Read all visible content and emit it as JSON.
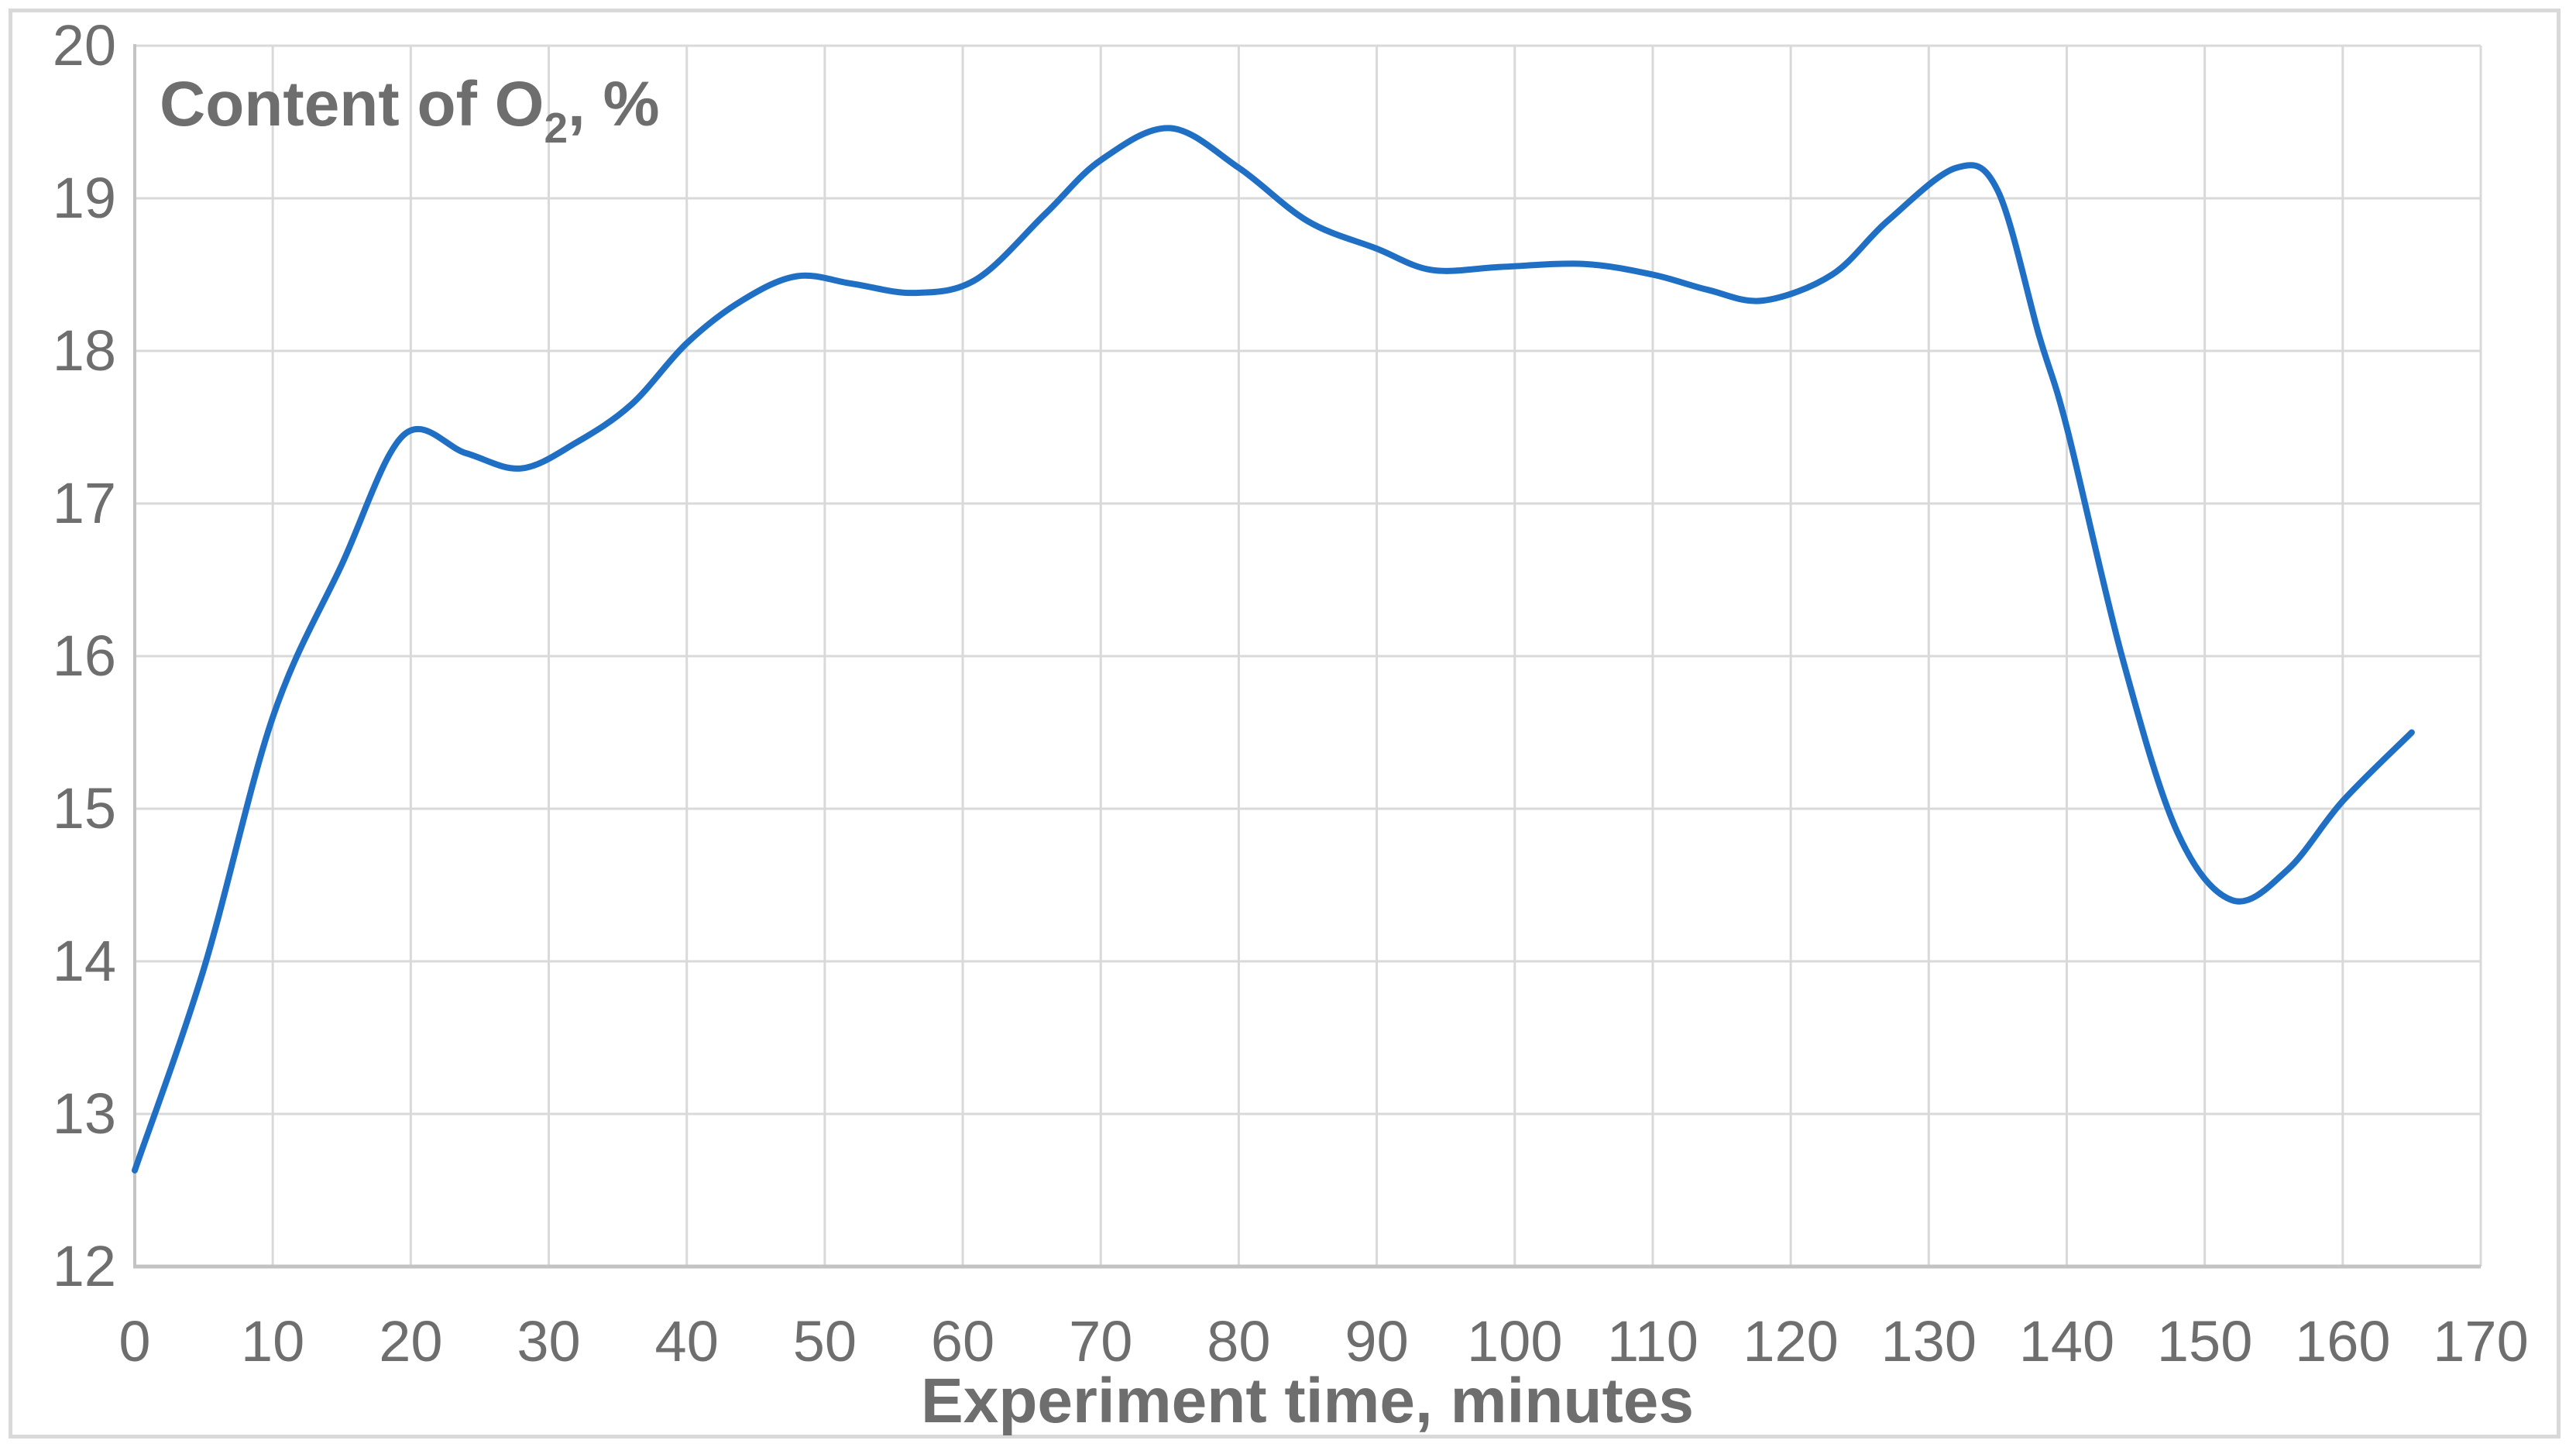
{
  "chart": {
    "title": {
      "prefix": "Content of O",
      "sub": "2",
      "suffix": ", %"
    },
    "x_axis": {
      "title": "Experiment time, minutes",
      "ticks": [
        0,
        10,
        20,
        30,
        40,
        50,
        60,
        70,
        80,
        90,
        100,
        110,
        120,
        130,
        140,
        150,
        160,
        170
      ],
      "min": 0,
      "max": 170
    },
    "y_axis": {
      "ticks": [
        20,
        19,
        18,
        17,
        16,
        15,
        14,
        13,
        12
      ],
      "min": 12,
      "max": 20
    },
    "colors": {
      "line": "#1f6fc4",
      "grid": "#d9d9d9",
      "axis": "#c3c3c3",
      "text": "#6e6e6e",
      "frame": "#d9d9d9",
      "background": "#ffffff"
    }
  },
  "chart_data": {
    "type": "line",
    "smooth": true,
    "title": "Content of O2, %",
    "xlabel": "Experiment time, minutes",
    "ylabel": "Content of O2, %",
    "xlim": [
      0,
      170
    ],
    "ylim": [
      12,
      20
    ],
    "grid": true,
    "legend": false,
    "series": [
      {
        "name": "Content of O2, %",
        "points": [
          [
            0,
            12.63
          ],
          [
            5,
            13.95
          ],
          [
            10,
            15.6
          ],
          [
            15,
            16.6
          ],
          [
            19.5,
            17.45
          ],
          [
            24,
            17.33
          ],
          [
            28,
            17.23
          ],
          [
            32,
            17.4
          ],
          [
            36,
            17.65
          ],
          [
            40,
            18.05
          ],
          [
            44,
            18.33
          ],
          [
            48,
            18.49
          ],
          [
            52,
            18.44
          ],
          [
            56.5,
            18.38
          ],
          [
            61,
            18.47
          ],
          [
            66,
            18.9
          ],
          [
            70,
            19.25
          ],
          [
            75,
            19.46
          ],
          [
            80,
            19.2
          ],
          [
            85,
            18.85
          ],
          [
            90,
            18.67
          ],
          [
            94,
            18.53
          ],
          [
            99,
            18.55
          ],
          [
            105,
            18.57
          ],
          [
            110,
            18.5
          ],
          [
            114,
            18.4
          ],
          [
            118,
            18.33
          ],
          [
            123,
            18.5
          ],
          [
            127,
            18.85
          ],
          [
            132,
            19.2
          ],
          [
            135,
            19.05
          ],
          [
            138,
            18.1
          ],
          [
            140,
            17.5
          ],
          [
            144,
            16.0
          ],
          [
            148,
            14.85
          ],
          [
            152,
            14.4
          ],
          [
            156,
            14.6
          ],
          [
            160,
            15.05
          ],
          [
            165,
            15.5
          ]
        ]
      }
    ]
  }
}
